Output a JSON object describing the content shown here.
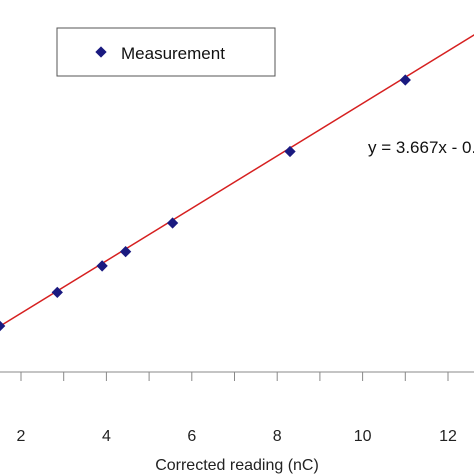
{
  "chart_data": {
    "type": "scatter",
    "title": "",
    "xlabel": "Corrected reading (nC)",
    "ylabel": "",
    "xlim": [
      1.0,
      13.5
    ],
    "ylim": [
      -2,
      49
    ],
    "xticks": [
      2,
      4,
      6,
      8,
      10,
      12
    ],
    "grid": false,
    "legend_position": "top-left",
    "series": [
      {
        "name": "Measurement",
        "marker": "diamond",
        "color": "#1a1a80",
        "x": [
          1.5,
          2.85,
          3.9,
          4.45,
          5.55,
          8.3,
          11.0
        ],
        "y": [
          5.2,
          9.9,
          13.6,
          15.6,
          19.6,
          29.6,
          39.6
        ]
      }
    ],
    "fit_line": {
      "color": "#d62020",
      "slope": 3.667,
      "intercept": -0.35
    },
    "annotations": [
      {
        "text": "y = 3.667x - 0."
      }
    ]
  }
}
